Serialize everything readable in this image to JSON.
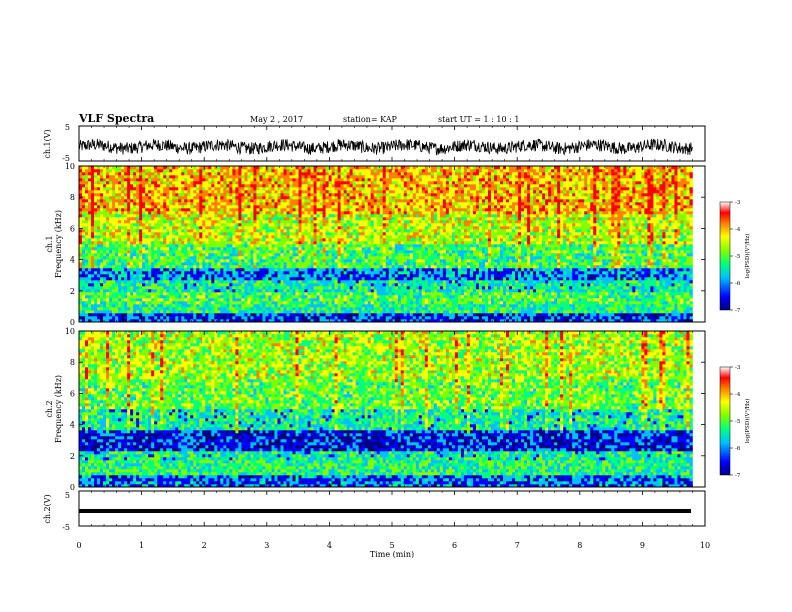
{
  "header": {
    "title": "VLF Spectra",
    "date": "May 2  , 2017",
    "station": "station= KAP",
    "start": "start  UT =   1 : 10 : 1"
  },
  "chart_data": [
    {
      "type": "line",
      "panel": "ch1_waveform",
      "ylabel": "ch.1(V)",
      "ylim": [
        -5,
        5
      ],
      "yticks": [
        "5",
        "-5"
      ],
      "xlim": [
        0,
        10
      ],
      "color": "#000000",
      "description_values": "noisy waveform around -1 V amplitude ~2 V"
    },
    {
      "type": "heatmap",
      "panel": "ch1_spectrogram",
      "ylabel": "ch.1\nFrequency  (kHz)",
      "ylim": [
        0,
        10
      ],
      "yticks": [
        "0",
        "2",
        "4",
        "6",
        "8",
        "10"
      ],
      "xlim": [
        0,
        9.8
      ],
      "bands": [
        {
          "f": [
            0,
            0.6
          ],
          "level": -6.2
        },
        {
          "f": [
            0.6,
            1.2
          ],
          "level": -5.3
        },
        {
          "f": [
            1.2,
            2.0
          ],
          "level": -5.0
        },
        {
          "f": [
            2.0,
            2.6
          ],
          "level": -5.4
        },
        {
          "f": [
            2.6,
            3.4
          ],
          "level": -5.9
        },
        {
          "f": [
            3.4,
            5.0
          ],
          "level": -5.1
        },
        {
          "f": [
            5.0,
            7.0
          ],
          "level": -4.5
        },
        {
          "f": [
            7.0,
            10.0
          ],
          "level": -4.0
        }
      ],
      "colorbar": {
        "label": "log(PSD)(V²/Hz)",
        "range": [
          -7,
          -3
        ],
        "ticks": [
          "-3",
          "-4",
          "-5",
          "-6",
          "-7"
        ]
      }
    },
    {
      "type": "heatmap",
      "panel": "ch2_spectrogram",
      "ylabel": "ch.2\nFrequency  (kHz)",
      "ylim": [
        0,
        10
      ],
      "yticks": [
        "0",
        "2",
        "4",
        "6",
        "8",
        "10"
      ],
      "xlim": [
        0,
        9.8
      ],
      "bands": [
        {
          "f": [
            0,
            0.8
          ],
          "level": -6.0
        },
        {
          "f": [
            0.8,
            1.8
          ],
          "level": -5.2
        },
        {
          "f": [
            1.8,
            2.4
          ],
          "level": -5.4
        },
        {
          "f": [
            2.4,
            3.6
          ],
          "level": -6.3
        },
        {
          "f": [
            3.6,
            5.0
          ],
          "level": -5.4
        },
        {
          "f": [
            5.0,
            7.0
          ],
          "level": -4.9
        },
        {
          "f": [
            7.0,
            10.0
          ],
          "level": -4.6
        }
      ],
      "colorbar": {
        "label": "log(PSD)(V²/Hz)",
        "range": [
          -7,
          -3
        ],
        "ticks": [
          "-3",
          "-4",
          "-5",
          "-6",
          "-7"
        ]
      }
    },
    {
      "type": "line",
      "panel": "ch2_waveform",
      "ylabel": "ch.2(V)",
      "ylim": [
        -5,
        5
      ],
      "yticks": [
        "5",
        "-5"
      ],
      "xlim": [
        0,
        10
      ],
      "values": [
        -1,
        -1
      ],
      "color": "#000000"
    }
  ],
  "xaxis": {
    "label": "Time  (min)",
    "ticks": [
      "0",
      "1",
      "2",
      "3",
      "4",
      "5",
      "6",
      "7",
      "8",
      "9",
      "10"
    ],
    "range": [
      0,
      10
    ]
  },
  "colors": {
    "scale": [
      "#000080",
      "#0000ff",
      "#00c0ff",
      "#00ff80",
      "#80ff00",
      "#ffff00",
      "#ff8000",
      "#ff0000",
      "#ffffff"
    ]
  }
}
